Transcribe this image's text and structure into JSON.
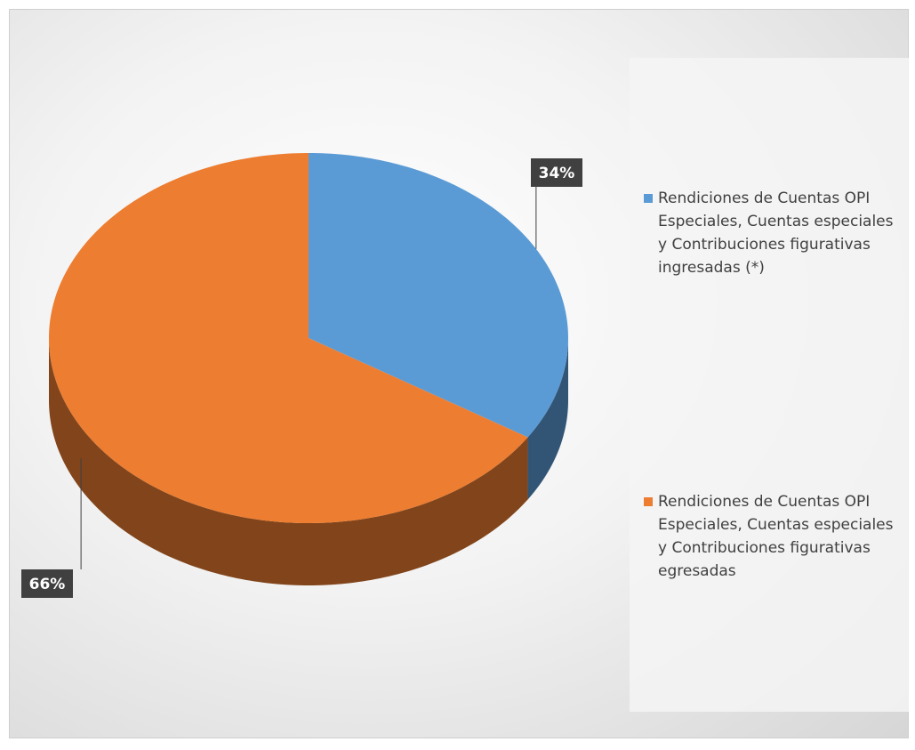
{
  "chart_data": {
    "type": "pie",
    "categories": [
      "Rendiciones de Cuentas OPI Especiales, Cuentas especiales y Contribuciones figurativas ingresadas (*)",
      "Rendiciones de Cuentas OPI Especiales, Cuentas especiales y Contribuciones figurativas egresadas"
    ],
    "values": [
      34,
      66
    ],
    "value_labels": [
      "34%",
      "66%"
    ],
    "colors": [
      "#5b9bd5",
      "#ed7d31"
    ]
  }
}
